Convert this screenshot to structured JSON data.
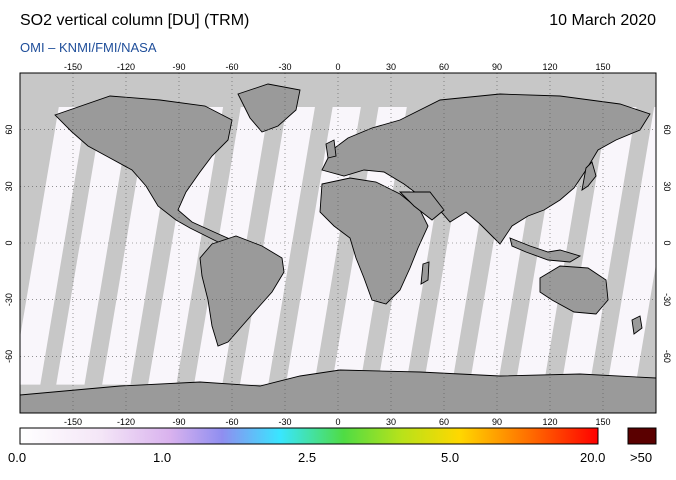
{
  "title": "SO2 vertical column [DU] (TRM)",
  "date": "10 March 2020",
  "credit": "OMI  –  KNMI/FMI/NASA",
  "map": {
    "lon_ticks": [
      -150,
      -120,
      -90,
      -60,
      -30,
      0,
      30,
      60,
      90,
      120,
      150
    ],
    "lat_ticks": [
      60,
      30,
      0,
      -30,
      -60
    ],
    "lon_range": [
      -180,
      180
    ],
    "lat_range": [
      -90,
      90
    ],
    "colors": {
      "ocean": "#c7c7c7",
      "land": "#9a9a9a",
      "swath": "#fbf8fd",
      "coast": "#000000"
    },
    "swath_centers_at_equator_lon": [
      -163,
      -138,
      -112,
      -86,
      -60,
      -34,
      -8,
      18,
      44,
      70,
      96,
      122,
      148,
      174
    ]
  },
  "colorbar": {
    "labels": [
      "0.0",
      "1.0",
      "2.5",
      "5.0",
      "20.0"
    ],
    "overflow_label": ">50",
    "overflow_color": "#5a0000"
  }
}
